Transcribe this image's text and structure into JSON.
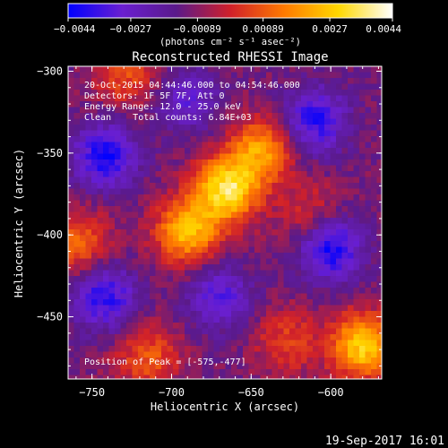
{
  "chart_data": {
    "type": "heatmap",
    "title": "Reconstructed RHESSI Image",
    "xlabel": "Heliocentric X (arcsec)",
    "ylabel": "Heliocentric Y (arcsec)",
    "xlim": [
      -765,
      -568
    ],
    "ylim": [
      -488,
      -297
    ],
    "x_ticks": [
      -750,
      -700,
      -650,
      -600
    ],
    "x_tick_labels": [
      "−750",
      "−700",
      "−650",
      "−600"
    ],
    "y_ticks": [
      -450,
      -400,
      -350,
      -300
    ],
    "y_tick_labels": [
      "−450",
      "−400",
      "−350",
      "−300"
    ],
    "colorbar": {
      "range": [
        -0.0044,
        0.0044
      ],
      "ticks": [
        -0.0044,
        -0.0027,
        -0.00089,
        0.00089,
        0.0027,
        0.0044
      ],
      "tick_labels": [
        "−0.0044",
        "−0.0027",
        "−0.00089",
        "0.00089",
        "0.0027",
        "0.0044"
      ],
      "unit_label": "(photons cm⁻² s⁻¹ asec⁻²)",
      "colors": [
        "#0000ff",
        "#6a1fd0",
        "#5a1a8a",
        "#d0202a",
        "#ff7a00",
        "#ffd800",
        "#ffffff"
      ]
    },
    "annotations": [
      "20-Oct-2015 04:44:46.000 to 04:54:46.000",
      "Detectors: 1F 5F 7F, Att 0",
      "Energy Range: 12.0 - 25.0 keV",
      "Clean    Total counts: 6.84E+03"
    ],
    "peak_label": "Position of Peak = [-575,-477]",
    "peak_position": [
      -575,
      -477
    ],
    "sources": [
      {
        "x": -665,
        "y": -372,
        "value": 0.0044
      },
      {
        "x": -690,
        "y": -398,
        "value": 0.0036
      },
      {
        "x": -643,
        "y": -348,
        "value": 0.003
      },
      {
        "x": -580,
        "y": -468,
        "value": 0.004
      },
      {
        "x": -628,
        "y": -465,
        "value": 0.0016
      },
      {
        "x": -758,
        "y": -405,
        "value": 0.0022
      },
      {
        "x": -728,
        "y": -302,
        "value": 0.0018
      },
      {
        "x": -612,
        "y": -388,
        "value": 0.0014
      },
      {
        "x": -715,
        "y": -475,
        "value": 0.002
      },
      {
        "x": -742,
        "y": -352,
        "value": -0.003
      },
      {
        "x": -610,
        "y": -330,
        "value": -0.0028
      },
      {
        "x": -600,
        "y": -408,
        "value": -0.0032
      },
      {
        "x": -742,
        "y": -438,
        "value": -0.0028
      },
      {
        "x": -670,
        "y": -438,
        "value": -0.0022
      },
      {
        "x": -690,
        "y": -318,
        "value": -0.0018
      }
    ]
  },
  "footer": {
    "date": "19-Sep-2017 16:01"
  }
}
